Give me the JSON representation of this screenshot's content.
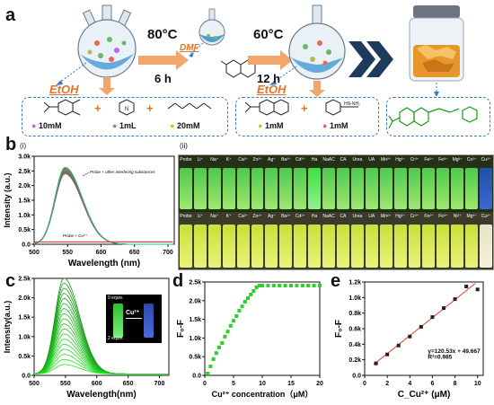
{
  "panels": {
    "a": "a",
    "b": "b",
    "b_i": "(i)",
    "b_ii": "(ii)",
    "c": "c",
    "d": "d",
    "e": "e"
  },
  "synthesis": {
    "step1": {
      "temp": "80°C",
      "time": "6 h",
      "solvent_left": "EtOH",
      "solvent_mid": "DMF"
    },
    "step2": {
      "temp": "60°C",
      "time": "12 h",
      "solvent": "EtOH"
    },
    "reagents1": {
      "r1": "10mM",
      "r2": "1mL",
      "r3": "20mM"
    },
    "reagents2": {
      "r1": "1mM",
      "r2": "1mM"
    }
  },
  "colors": {
    "green": "#1db31d",
    "blue": "#2f6dbf",
    "orange": "#f2a66b",
    "red": "#d22"
  },
  "fluor": {
    "ylabel": "Intensity (a.u.)",
    "xlabel": "Wavelength (nm)",
    "annot_top": "Probe + other interfering substances",
    "annot_bottom": "Probe + Cu²⁺",
    "xticks": [
      "500",
      "550",
      "600",
      "650",
      "700"
    ],
    "yticks": [
      "0.0",
      "0.5k",
      "1.0k",
      "1.5k",
      "2.0k",
      "2.5k",
      "3.0k"
    ]
  },
  "vials": {
    "row1": [
      "Probe",
      "Li⁺",
      "Na⁺",
      "K⁺",
      "Ca²⁺",
      "Zn²⁺",
      "Ag⁺",
      "Ba²⁺",
      "Cd²⁺",
      "Ha",
      "NaAC",
      "CA",
      "Urea",
      "UA",
      "Mn²⁺",
      "Hg²⁺",
      "Cr³⁺",
      "Fe²⁺",
      "Fe³⁺",
      "Mg²⁺",
      "Co²⁺",
      "Cu²⁺"
    ],
    "row2": [
      "Probe",
      "Li⁺",
      "Na⁺",
      "K⁺",
      "Ca²⁺",
      "Zn²⁺",
      "Ag⁺",
      "Ba²⁺",
      "Cd²⁺",
      "Ha",
      "NaAC",
      "CA",
      "Urea",
      "UA",
      "Mn²⁺",
      "Hg²⁺",
      "Cr³⁺",
      "Fe²⁺",
      "Fe³⁺",
      "Ni²⁺",
      "Mg²⁺",
      "Cu²⁺"
    ]
  },
  "titration": {
    "ylabel": "Intensity(a.u.)",
    "xlabel": "Wavelength(nm)",
    "xticks": [
      "500",
      "550",
      "600",
      "650",
      "700"
    ],
    "yticks": [
      "0.0",
      "0.5k",
      "1.0k",
      "1.5k",
      "2.0k",
      "2.5k"
    ],
    "inset_top": "0 equiv.",
    "inset_bottom": "2 equiv.",
    "inset_arrow": "Cu²⁺"
  },
  "chart_data": [
    {
      "type": "scatter",
      "xlabel": "Cu²⁺ concentration（μM）",
      "ylabel": "F₀-F",
      "xlim": [
        0,
        20
      ],
      "ylim": [
        0,
        2.6
      ],
      "xticks": [
        "0",
        "5",
        "10",
        "15",
        "20"
      ],
      "yticks": [
        "0.0",
        "0.5k",
        "1.0k",
        "1.5k",
        "2.0k",
        "2.5k"
      ],
      "x": [
        0.5,
        1.0,
        1.5,
        2.0,
        2.5,
        3.0,
        3.5,
        4.0,
        4.5,
        5.0,
        5.5,
        6.0,
        6.5,
        7.0,
        7.5,
        8.0,
        8.5,
        9.0,
        9.5,
        10,
        11,
        12,
        13,
        14,
        15,
        16,
        17,
        18,
        19,
        20
      ],
      "y": [
        0.05,
        0.25,
        0.45,
        0.62,
        0.78,
        0.9,
        1.08,
        1.22,
        1.38,
        1.52,
        1.65,
        1.8,
        1.92,
        2.05,
        2.15,
        2.25,
        2.35,
        2.45,
        2.5,
        2.5,
        2.5,
        2.5,
        2.5,
        2.5,
        2.5,
        2.5,
        2.5,
        2.5,
        2.5,
        2.5
      ]
    },
    {
      "type": "scatter",
      "xlabel": "C_Cu²⁺ (μM)",
      "ylabel": "F₀-F",
      "xlim": [
        0,
        10.5
      ],
      "ylim": [
        0,
        1.25
      ],
      "xticks": [
        "0",
        "2",
        "4",
        "6",
        "8",
        "10"
      ],
      "yticks": [
        "0.0",
        "0.2k",
        "0.4k",
        "0.6k",
        "0.8k",
        "1.0k",
        "1.2k"
      ],
      "x": [
        1,
        2,
        3,
        4,
        5,
        6,
        7,
        8,
        9,
        10
      ],
      "y": [
        0.16,
        0.28,
        0.4,
        0.52,
        0.65,
        0.78,
        0.9,
        1.02,
        1.19,
        1.15
      ],
      "fit_equation": "y=120.53x + 49.667",
      "r_squared": "R²=0.985"
    }
  ]
}
